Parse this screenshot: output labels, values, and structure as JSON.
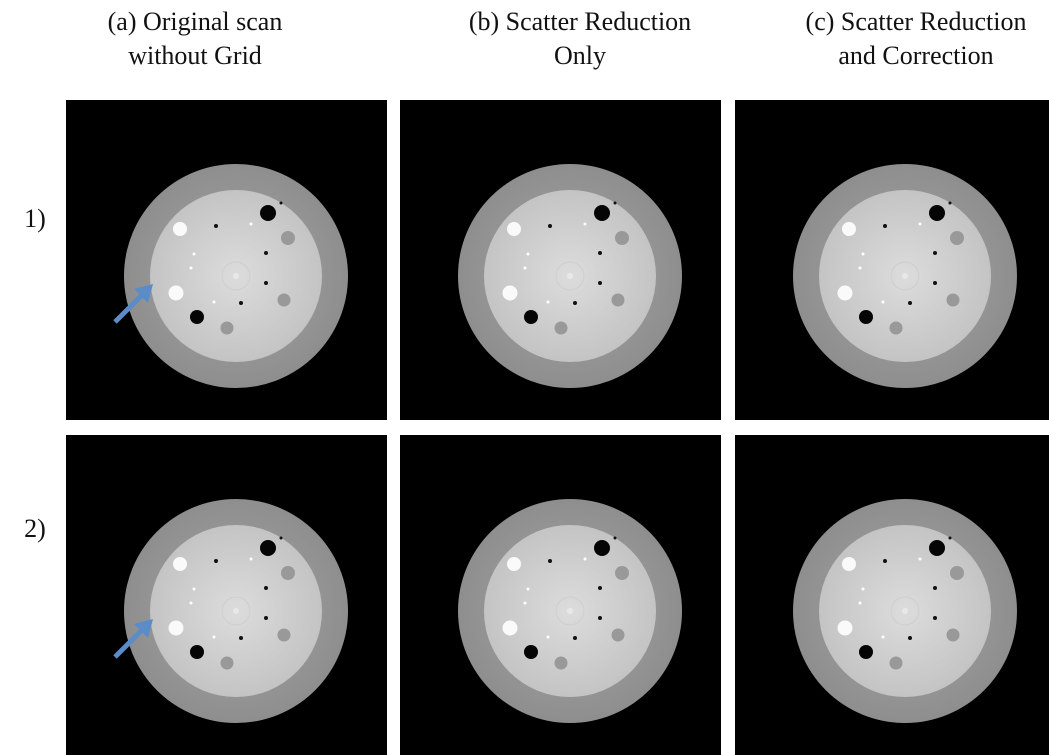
{
  "columns": [
    {
      "lines": [
        "(a) Original scan",
        "without Grid"
      ]
    },
    {
      "lines": [
        "(b) Scatter Reduction",
        "Only"
      ]
    },
    {
      "lines": [
        "(c) Scatter Reduction",
        "and Correction"
      ]
    }
  ],
  "rows": [
    {
      "label": "1)"
    },
    {
      "label": "2)"
    }
  ]
}
